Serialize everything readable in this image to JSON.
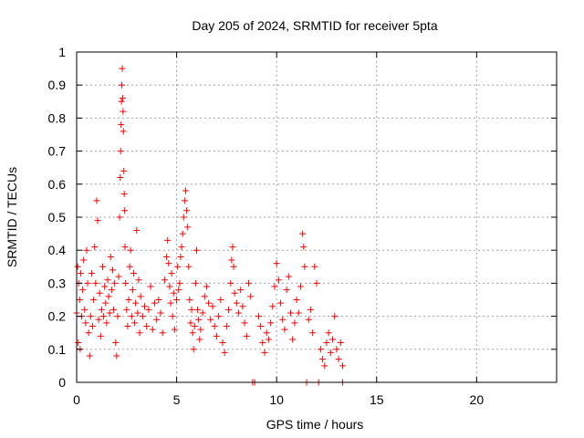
{
  "chart_data": {
    "type": "scatter",
    "title": "Day 205 of 2024, SRMTID for receiver 5pta",
    "xlabel": "GPS time / hours",
    "ylabel": "SRMTID / TECUs",
    "xlim": [
      0,
      24
    ],
    "ylim": [
      0,
      1
    ],
    "grid": true,
    "x_ticks": [
      {
        "value": 0,
        "label": "0"
      },
      {
        "value": 5,
        "label": "5"
      },
      {
        "value": 10,
        "label": "10"
      },
      {
        "value": 15,
        "label": "15"
      },
      {
        "value": 20,
        "label": "20"
      }
    ],
    "y_ticks": [
      {
        "value": 0,
        "label": "0"
      },
      {
        "value": 0.1,
        "label": "0.1"
      },
      {
        "value": 0.2,
        "label": "0.2"
      },
      {
        "value": 0.3,
        "label": "0.3"
      },
      {
        "value": 0.4,
        "label": "0.4"
      },
      {
        "value": 0.5,
        "label": "0.5"
      },
      {
        "value": 0.6,
        "label": "0.6"
      },
      {
        "value": 0.7,
        "label": "0.7"
      },
      {
        "value": 0.8,
        "label": "0.8"
      },
      {
        "value": 0.9,
        "label": "0.9"
      },
      {
        "value": 1,
        "label": "1"
      }
    ],
    "marker": "+",
    "color": "#ff0000",
    "series": [
      {
        "name": "SRMTID",
        "points": [
          [
            0.0,
            0.21
          ],
          [
            0.05,
            0.35
          ],
          [
            0.08,
            0.12
          ],
          [
            0.1,
            0.3
          ],
          [
            0.15,
            0.25
          ],
          [
            0.18,
            0.1
          ],
          [
            0.2,
            0.33
          ],
          [
            0.25,
            0.2
          ],
          [
            0.3,
            0.28
          ],
          [
            0.35,
            0.37
          ],
          [
            0.4,
            0.22
          ],
          [
            0.45,
            0.18
          ],
          [
            0.5,
            0.4
          ],
          [
            0.55,
            0.3
          ],
          [
            0.6,
            0.15
          ],
          [
            0.65,
            0.08
          ],
          [
            0.7,
            0.2
          ],
          [
            0.75,
            0.33
          ],
          [
            0.8,
            0.17
          ],
          [
            0.85,
            0.25
          ],
          [
            0.9,
            0.41
          ],
          [
            0.95,
            0.3
          ],
          [
            1.0,
            0.55
          ],
          [
            1.05,
            0.49
          ],
          [
            1.1,
            0.19
          ],
          [
            1.15,
            0.27
          ],
          [
            1.2,
            0.14
          ],
          [
            1.25,
            0.22
          ],
          [
            1.3,
            0.35
          ],
          [
            1.35,
            0.2
          ],
          [
            1.4,
            0.29
          ],
          [
            1.45,
            0.24
          ],
          [
            1.5,
            0.18
          ],
          [
            1.55,
            0.31
          ],
          [
            1.6,
            0.26
          ],
          [
            1.65,
            0.21
          ],
          [
            1.7,
            0.38
          ],
          [
            1.75,
            0.28
          ],
          [
            1.8,
            0.34
          ],
          [
            1.85,
            0.22
          ],
          [
            1.9,
            0.3
          ],
          [
            1.95,
            0.12
          ],
          [
            2.0,
            0.08
          ],
          [
            2.05,
            0.2
          ],
          [
            2.1,
            0.32
          ],
          [
            2.15,
            0.5
          ],
          [
            2.18,
            0.62
          ],
          [
            2.2,
            0.7
          ],
          [
            2.22,
            0.78
          ],
          [
            2.24,
            0.85
          ],
          [
            2.26,
            0.9
          ],
          [
            2.28,
            0.95
          ],
          [
            2.3,
            0.86
          ],
          [
            2.32,
            0.82
          ],
          [
            2.34,
            0.76
          ],
          [
            2.36,
            0.64
          ],
          [
            2.38,
            0.57
          ],
          [
            2.4,
            0.52
          ],
          [
            2.42,
            0.41
          ],
          [
            2.45,
            0.3
          ],
          [
            2.5,
            0.22
          ],
          [
            2.55,
            0.17
          ],
          [
            2.6,
            0.25
          ],
          [
            2.65,
            0.35
          ],
          [
            2.7,
            0.4
          ],
          [
            2.75,
            0.2
          ],
          [
            2.8,
            0.28
          ],
          [
            2.85,
            0.33
          ],
          [
            2.9,
            0.18
          ],
          [
            2.95,
            0.24
          ],
          [
            3.0,
            0.46
          ],
          [
            3.05,
            0.21
          ],
          [
            3.1,
            0.31
          ],
          [
            3.15,
            0.15
          ],
          [
            3.2,
            0.26
          ],
          [
            3.3,
            0.2
          ],
          [
            3.4,
            0.23
          ],
          [
            3.5,
            0.17
          ],
          [
            3.6,
            0.22
          ],
          [
            3.7,
            0.29
          ],
          [
            3.8,
            0.16
          ],
          [
            3.9,
            0.24
          ],
          [
            4.0,
            0.19
          ],
          [
            4.1,
            0.25
          ],
          [
            4.2,
            0.21
          ],
          [
            4.3,
            0.15
          ],
          [
            4.4,
            0.31
          ],
          [
            4.5,
            0.38
          ],
          [
            4.55,
            0.43
          ],
          [
            4.6,
            0.36
          ],
          [
            4.65,
            0.29
          ],
          [
            4.7,
            0.24
          ],
          [
            4.75,
            0.33
          ],
          [
            4.8,
            0.2
          ],
          [
            4.85,
            0.27
          ],
          [
            4.9,
            0.16
          ],
          [
            5.0,
            0.25
          ],
          [
            5.05,
            0.35
          ],
          [
            5.1,
            0.28
          ],
          [
            5.15,
            0.3
          ],
          [
            5.2,
            0.38
          ],
          [
            5.25,
            0.41
          ],
          [
            5.3,
            0.45
          ],
          [
            5.35,
            0.5
          ],
          [
            5.4,
            0.55
          ],
          [
            5.45,
            0.58
          ],
          [
            5.5,
            0.52
          ],
          [
            5.55,
            0.47
          ],
          [
            5.6,
            0.35
          ],
          [
            5.65,
            0.25
          ],
          [
            5.7,
            0.18
          ],
          [
            5.75,
            0.22
          ],
          [
            5.8,
            0.15
          ],
          [
            5.85,
            0.1
          ],
          [
            5.9,
            0.17
          ],
          [
            5.95,
            0.3
          ],
          [
            6.0,
            0.4
          ],
          [
            6.05,
            0.22
          ],
          [
            6.1,
            0.19
          ],
          [
            6.15,
            0.13
          ],
          [
            6.2,
            0.16
          ],
          [
            6.3,
            0.21
          ],
          [
            6.4,
            0.26
          ],
          [
            6.5,
            0.29
          ],
          [
            6.6,
            0.24
          ],
          [
            6.7,
            0.19
          ],
          [
            6.8,
            0.23
          ],
          [
            6.9,
            0.17
          ],
          [
            7.0,
            0.14
          ],
          [
            7.1,
            0.2
          ],
          [
            7.2,
            0.25
          ],
          [
            7.3,
            0.12
          ],
          [
            7.4,
            0.09
          ],
          [
            7.5,
            0.17
          ],
          [
            7.6,
            0.22
          ],
          [
            7.7,
            0.3
          ],
          [
            7.75,
            0.37
          ],
          [
            7.8,
            0.41
          ],
          [
            7.85,
            0.35
          ],
          [
            7.9,
            0.27
          ],
          [
            8.0,
            0.24
          ],
          [
            8.1,
            0.21
          ],
          [
            8.2,
            0.28
          ],
          [
            8.3,
            0.23
          ],
          [
            8.4,
            0.18
          ],
          [
            8.5,
            0.14
          ],
          [
            8.6,
            0.3
          ],
          [
            8.7,
            0.26
          ],
          [
            8.8,
            0.0
          ],
          [
            8.9,
            0.0
          ],
          [
            9.1,
            0.2
          ],
          [
            9.2,
            0.17
          ],
          [
            9.3,
            0.12
          ],
          [
            9.4,
            0.09
          ],
          [
            9.5,
            0.15
          ],
          [
            9.6,
            0.13
          ],
          [
            9.7,
            0.18
          ],
          [
            9.8,
            0.23
          ],
          [
            9.9,
            0.29
          ],
          [
            10.0,
            0.36
          ],
          [
            10.1,
            0.31
          ],
          [
            10.2,
            0.24
          ],
          [
            10.3,
            0.19
          ],
          [
            10.4,
            0.16
          ],
          [
            10.5,
            0.28
          ],
          [
            10.6,
            0.32
          ],
          [
            10.7,
            0.21
          ],
          [
            10.8,
            0.13
          ],
          [
            10.9,
            0.18
          ],
          [
            11.0,
            0.25
          ],
          [
            11.1,
            0.21
          ],
          [
            11.2,
            0.29
          ],
          [
            11.3,
            0.45
          ],
          [
            11.35,
            0.41
          ],
          [
            11.4,
            0.35
          ],
          [
            11.5,
            0.0
          ],
          [
            11.6,
            0.19
          ],
          [
            11.7,
            0.22
          ],
          [
            11.8,
            0.15
          ],
          [
            11.9,
            0.35
          ],
          [
            12.0,
            0.3
          ],
          [
            12.1,
            0.0
          ],
          [
            12.2,
            0.1
          ],
          [
            12.3,
            0.07
          ],
          [
            12.4,
            0.05
          ],
          [
            12.5,
            0.12
          ],
          [
            12.6,
            0.15
          ],
          [
            12.7,
            0.09
          ],
          [
            12.8,
            0.13
          ],
          [
            12.9,
            0.2
          ],
          [
            13.0,
            0.1
          ],
          [
            13.1,
            0.07
          ],
          [
            13.2,
            0.12
          ],
          [
            13.3,
            0.0
          ],
          [
            13.3,
            0.05
          ]
        ]
      }
    ]
  }
}
